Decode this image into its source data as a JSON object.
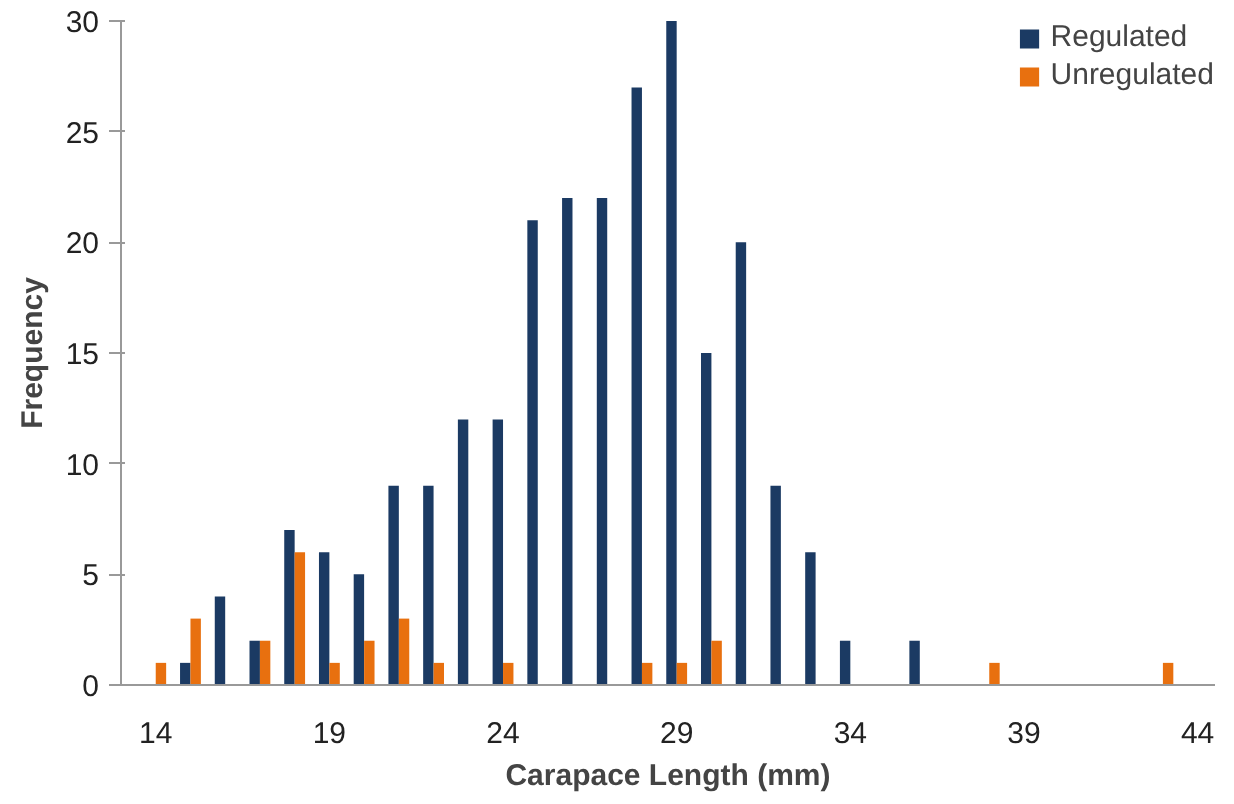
{
  "chart_data": {
    "type": "bar",
    "xlabel": "Carapace Length (mm)",
    "ylabel": "Frequency",
    "categories": [
      "14",
      null,
      null,
      null,
      null,
      "19",
      null,
      null,
      null,
      null,
      "24",
      null,
      null,
      null,
      null,
      "29",
      null,
      null,
      null,
      null,
      "34",
      null,
      null,
      null,
      null,
      "39",
      null,
      null,
      null,
      null,
      "44"
    ],
    "series": [
      {
        "name": "Regulated",
        "color": "#1b3a63",
        "values": [
          0,
          1,
          4,
          2,
          7,
          6,
          5,
          9,
          9,
          12,
          12,
          21,
          22,
          22,
          27,
          30,
          15,
          20,
          9,
          6,
          2,
          0,
          2,
          0,
          0,
          0,
          0,
          0,
          0,
          0,
          0
        ]
      },
      {
        "name": "Unregulated",
        "color": "#e8700f",
        "values": [
          1,
          3,
          0,
          2,
          6,
          1,
          2,
          3,
          1,
          0,
          1,
          0,
          0,
          0,
          1,
          1,
          2,
          0,
          0,
          0,
          0,
          0,
          0,
          0,
          1,
          0,
          0,
          0,
          0,
          1,
          0
        ]
      }
    ],
    "ylim": [
      0,
      30
    ],
    "yticks": [
      0,
      5,
      10,
      15,
      20,
      25,
      30
    ],
    "grid": false,
    "legend": "top right"
  }
}
